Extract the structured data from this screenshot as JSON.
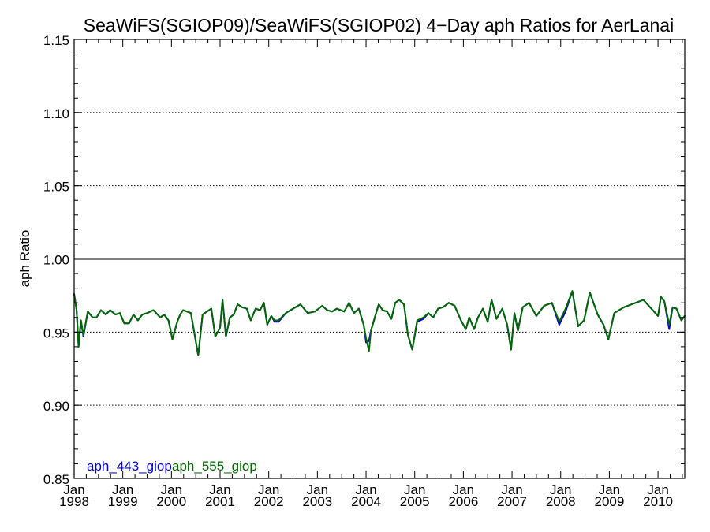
{
  "chart_data": {
    "type": "line",
    "title": "SeaWiFS(SGIOP09)/SeaWiFS(SGIOP02) 4−Day aph Ratios for AerLanai",
    "xlabel": "",
    "ylabel": "aph Ratio",
    "ylim": [
      0.85,
      1.15
    ],
    "yticks": [
      "0.85",
      "0.90",
      "0.95",
      "1.00",
      "1.05",
      "1.10",
      "1.15"
    ],
    "xlim": [
      1998.0,
      2010.55
    ],
    "xticks": [
      {
        "year": 1998,
        "month": "Jan",
        "label": "1998"
      },
      {
        "year": 1999,
        "month": "Jan",
        "label": "1999"
      },
      {
        "year": 2000,
        "month": "Jan",
        "label": "2000"
      },
      {
        "year": 2001,
        "month": "Jan",
        "label": "2001"
      },
      {
        "year": 2002,
        "month": "Jan",
        "label": "2002"
      },
      {
        "year": 2003,
        "month": "Jan",
        "label": "2003"
      },
      {
        "year": 2004,
        "month": "Jan",
        "label": "2004"
      },
      {
        "year": 2005,
        "month": "Jan",
        "label": "2005"
      },
      {
        "year": 2006,
        "month": "Jan",
        "label": "2006"
      },
      {
        "year": 2007,
        "month": "Jan",
        "label": "2007"
      },
      {
        "year": 2008,
        "month": "Jan",
        "label": "2008"
      },
      {
        "year": 2009,
        "month": "Jan",
        "label": "2009"
      },
      {
        "year": 2010,
        "month": "Jan",
        "label": "2010"
      }
    ],
    "reference_line": 1.0,
    "grid": "dotted horizontal at each y tick",
    "legend": {
      "placement": "bottom-left",
      "inline": true
    },
    "series": [
      {
        "name": "aph_443_giop",
        "color": "#0000cc",
        "x": [
          1998.0,
          1998.05,
          1998.09,
          1998.14,
          1998.19,
          1998.28,
          1998.38,
          1998.46,
          1998.55,
          1998.65,
          1998.74,
          1998.85,
          1998.94,
          1999.03,
          1999.13,
          1999.22,
          1999.31,
          1999.4,
          1999.5,
          1999.63,
          1999.77,
          1999.85,
          1999.94,
          2000.02,
          2000.12,
          2000.18,
          2000.24,
          2000.32,
          2000.4,
          2000.55,
          2000.64,
          2000.73,
          2000.82,
          2000.9,
          2001.0,
          2001.05,
          2001.12,
          2001.2,
          2001.28,
          2001.36,
          2001.45,
          2001.55,
          2001.63,
          2001.73,
          2001.82,
          2001.9,
          2001.97,
          2002.05,
          2002.12,
          2002.2,
          2002.35,
          2002.5,
          2002.65,
          2002.8,
          2002.95,
          2003.1,
          2003.2,
          2003.3,
          2003.4,
          2003.55,
          2003.65,
          2003.75,
          2003.85,
          2003.95,
          2004.0,
          2004.06,
          2004.1,
          2004.18,
          2004.26,
          2004.34,
          2004.43,
          2004.52,
          2004.6,
          2004.68,
          2004.78,
          2004.86,
          2004.95,
          2005.05,
          2005.18,
          2005.28,
          2005.38,
          2005.48,
          2005.58,
          2005.7,
          2005.82,
          2005.95,
          2006.05,
          2006.12,
          2006.22,
          2006.3,
          2006.4,
          2006.5,
          2006.58,
          2006.68,
          2006.8,
          2006.9,
          2006.98,
          2007.05,
          2007.12,
          2007.22,
          2007.35,
          2007.5,
          2007.66,
          2007.82,
          2007.97,
          2008.1,
          2008.24,
          2008.36,
          2008.48,
          2008.6,
          2008.76,
          2008.88,
          2008.98,
          2009.1,
          2009.3,
          2009.7,
          2010.0,
          2010.06,
          2010.13,
          2010.23,
          2010.3,
          2010.38,
          2010.48,
          2010.55
        ],
        "values": [
          0.976,
          0.965,
          0.94,
          0.958,
          0.947,
          0.964,
          0.96,
          0.96,
          0.965,
          0.962,
          0.965,
          0.962,
          0.963,
          0.956,
          0.956,
          0.962,
          0.958,
          0.962,
          0.963,
          0.965,
          0.96,
          0.962,
          0.958,
          0.945,
          0.957,
          0.962,
          0.965,
          0.964,
          0.963,
          0.934,
          0.962,
          0.964,
          0.966,
          0.947,
          0.953,
          0.972,
          0.947,
          0.96,
          0.962,
          0.969,
          0.967,
          0.966,
          0.958,
          0.966,
          0.965,
          0.97,
          0.955,
          0.961,
          0.957,
          0.957,
          0.963,
          0.966,
          0.969,
          0.963,
          0.964,
          0.968,
          0.965,
          0.964,
          0.966,
          0.964,
          0.97,
          0.963,
          0.966,
          0.955,
          0.943,
          0.944,
          0.951,
          0.96,
          0.969,
          0.965,
          0.964,
          0.959,
          0.97,
          0.972,
          0.969,
          0.948,
          0.938,
          0.957,
          0.959,
          0.963,
          0.96,
          0.966,
          0.967,
          0.97,
          0.968,
          0.958,
          0.952,
          0.96,
          0.952,
          0.96,
          0.966,
          0.957,
          0.972,
          0.959,
          0.966,
          0.955,
          0.938,
          0.963,
          0.951,
          0.967,
          0.97,
          0.961,
          0.968,
          0.97,
          0.955,
          0.964,
          0.978,
          0.954,
          0.958,
          0.977,
          0.962,
          0.955,
          0.945,
          0.963,
          0.967,
          0.972,
          0.961,
          0.974,
          0.971,
          0.952,
          0.967,
          0.966,
          0.958,
          0.961
        ]
      },
      {
        "name": "aph_555_giop",
        "color": "#006600",
        "x": [
          1998.0,
          1998.05,
          1998.09,
          1998.14,
          1998.19,
          1998.28,
          1998.38,
          1998.46,
          1998.55,
          1998.65,
          1998.74,
          1998.85,
          1998.94,
          1999.03,
          1999.13,
          1999.22,
          1999.31,
          1999.4,
          1999.5,
          1999.63,
          1999.77,
          1999.85,
          1999.94,
          2000.02,
          2000.12,
          2000.18,
          2000.24,
          2000.32,
          2000.4,
          2000.55,
          2000.64,
          2000.73,
          2000.82,
          2000.9,
          2001.0,
          2001.05,
          2001.12,
          2001.2,
          2001.28,
          2001.36,
          2001.45,
          2001.55,
          2001.63,
          2001.73,
          2001.82,
          2001.9,
          2001.97,
          2002.05,
          2002.12,
          2002.2,
          2002.35,
          2002.5,
          2002.65,
          2002.8,
          2002.95,
          2003.1,
          2003.2,
          2003.3,
          2003.4,
          2003.55,
          2003.65,
          2003.75,
          2003.85,
          2003.95,
          2004.0,
          2004.06,
          2004.1,
          2004.18,
          2004.26,
          2004.34,
          2004.43,
          2004.52,
          2004.6,
          2004.68,
          2004.78,
          2004.86,
          2004.95,
          2005.05,
          2005.18,
          2005.28,
          2005.38,
          2005.48,
          2005.58,
          2005.7,
          2005.82,
          2005.95,
          2006.05,
          2006.12,
          2006.22,
          2006.3,
          2006.4,
          2006.5,
          2006.58,
          2006.68,
          2006.8,
          2006.9,
          2006.98,
          2007.05,
          2007.12,
          2007.22,
          2007.35,
          2007.5,
          2007.66,
          2007.82,
          2007.97,
          2008.1,
          2008.24,
          2008.36,
          2008.48,
          2008.6,
          2008.76,
          2008.88,
          2008.98,
          2009.1,
          2009.3,
          2009.7,
          2010.0,
          2010.06,
          2010.13,
          2010.23,
          2010.3,
          2010.38,
          2010.48,
          2010.55
        ],
        "values": [
          0.976,
          0.965,
          0.94,
          0.958,
          0.948,
          0.964,
          0.96,
          0.96,
          0.965,
          0.962,
          0.965,
          0.962,
          0.963,
          0.956,
          0.956,
          0.962,
          0.958,
          0.962,
          0.963,
          0.965,
          0.96,
          0.962,
          0.958,
          0.945,
          0.957,
          0.962,
          0.965,
          0.964,
          0.963,
          0.934,
          0.962,
          0.964,
          0.966,
          0.947,
          0.953,
          0.972,
          0.947,
          0.96,
          0.962,
          0.969,
          0.967,
          0.966,
          0.958,
          0.966,
          0.965,
          0.97,
          0.955,
          0.961,
          0.958,
          0.958,
          0.963,
          0.966,
          0.969,
          0.963,
          0.964,
          0.968,
          0.965,
          0.964,
          0.966,
          0.964,
          0.97,
          0.963,
          0.966,
          0.955,
          0.946,
          0.937,
          0.951,
          0.96,
          0.969,
          0.965,
          0.964,
          0.959,
          0.97,
          0.972,
          0.969,
          0.948,
          0.938,
          0.958,
          0.96,
          0.963,
          0.96,
          0.966,
          0.967,
          0.97,
          0.968,
          0.958,
          0.952,
          0.96,
          0.952,
          0.96,
          0.966,
          0.957,
          0.972,
          0.959,
          0.966,
          0.955,
          0.938,
          0.963,
          0.951,
          0.967,
          0.97,
          0.961,
          0.968,
          0.97,
          0.957,
          0.966,
          0.978,
          0.954,
          0.958,
          0.977,
          0.962,
          0.955,
          0.945,
          0.963,
          0.967,
          0.972,
          0.961,
          0.974,
          0.971,
          0.955,
          0.967,
          0.966,
          0.958,
          0.961
        ]
      }
    ]
  }
}
